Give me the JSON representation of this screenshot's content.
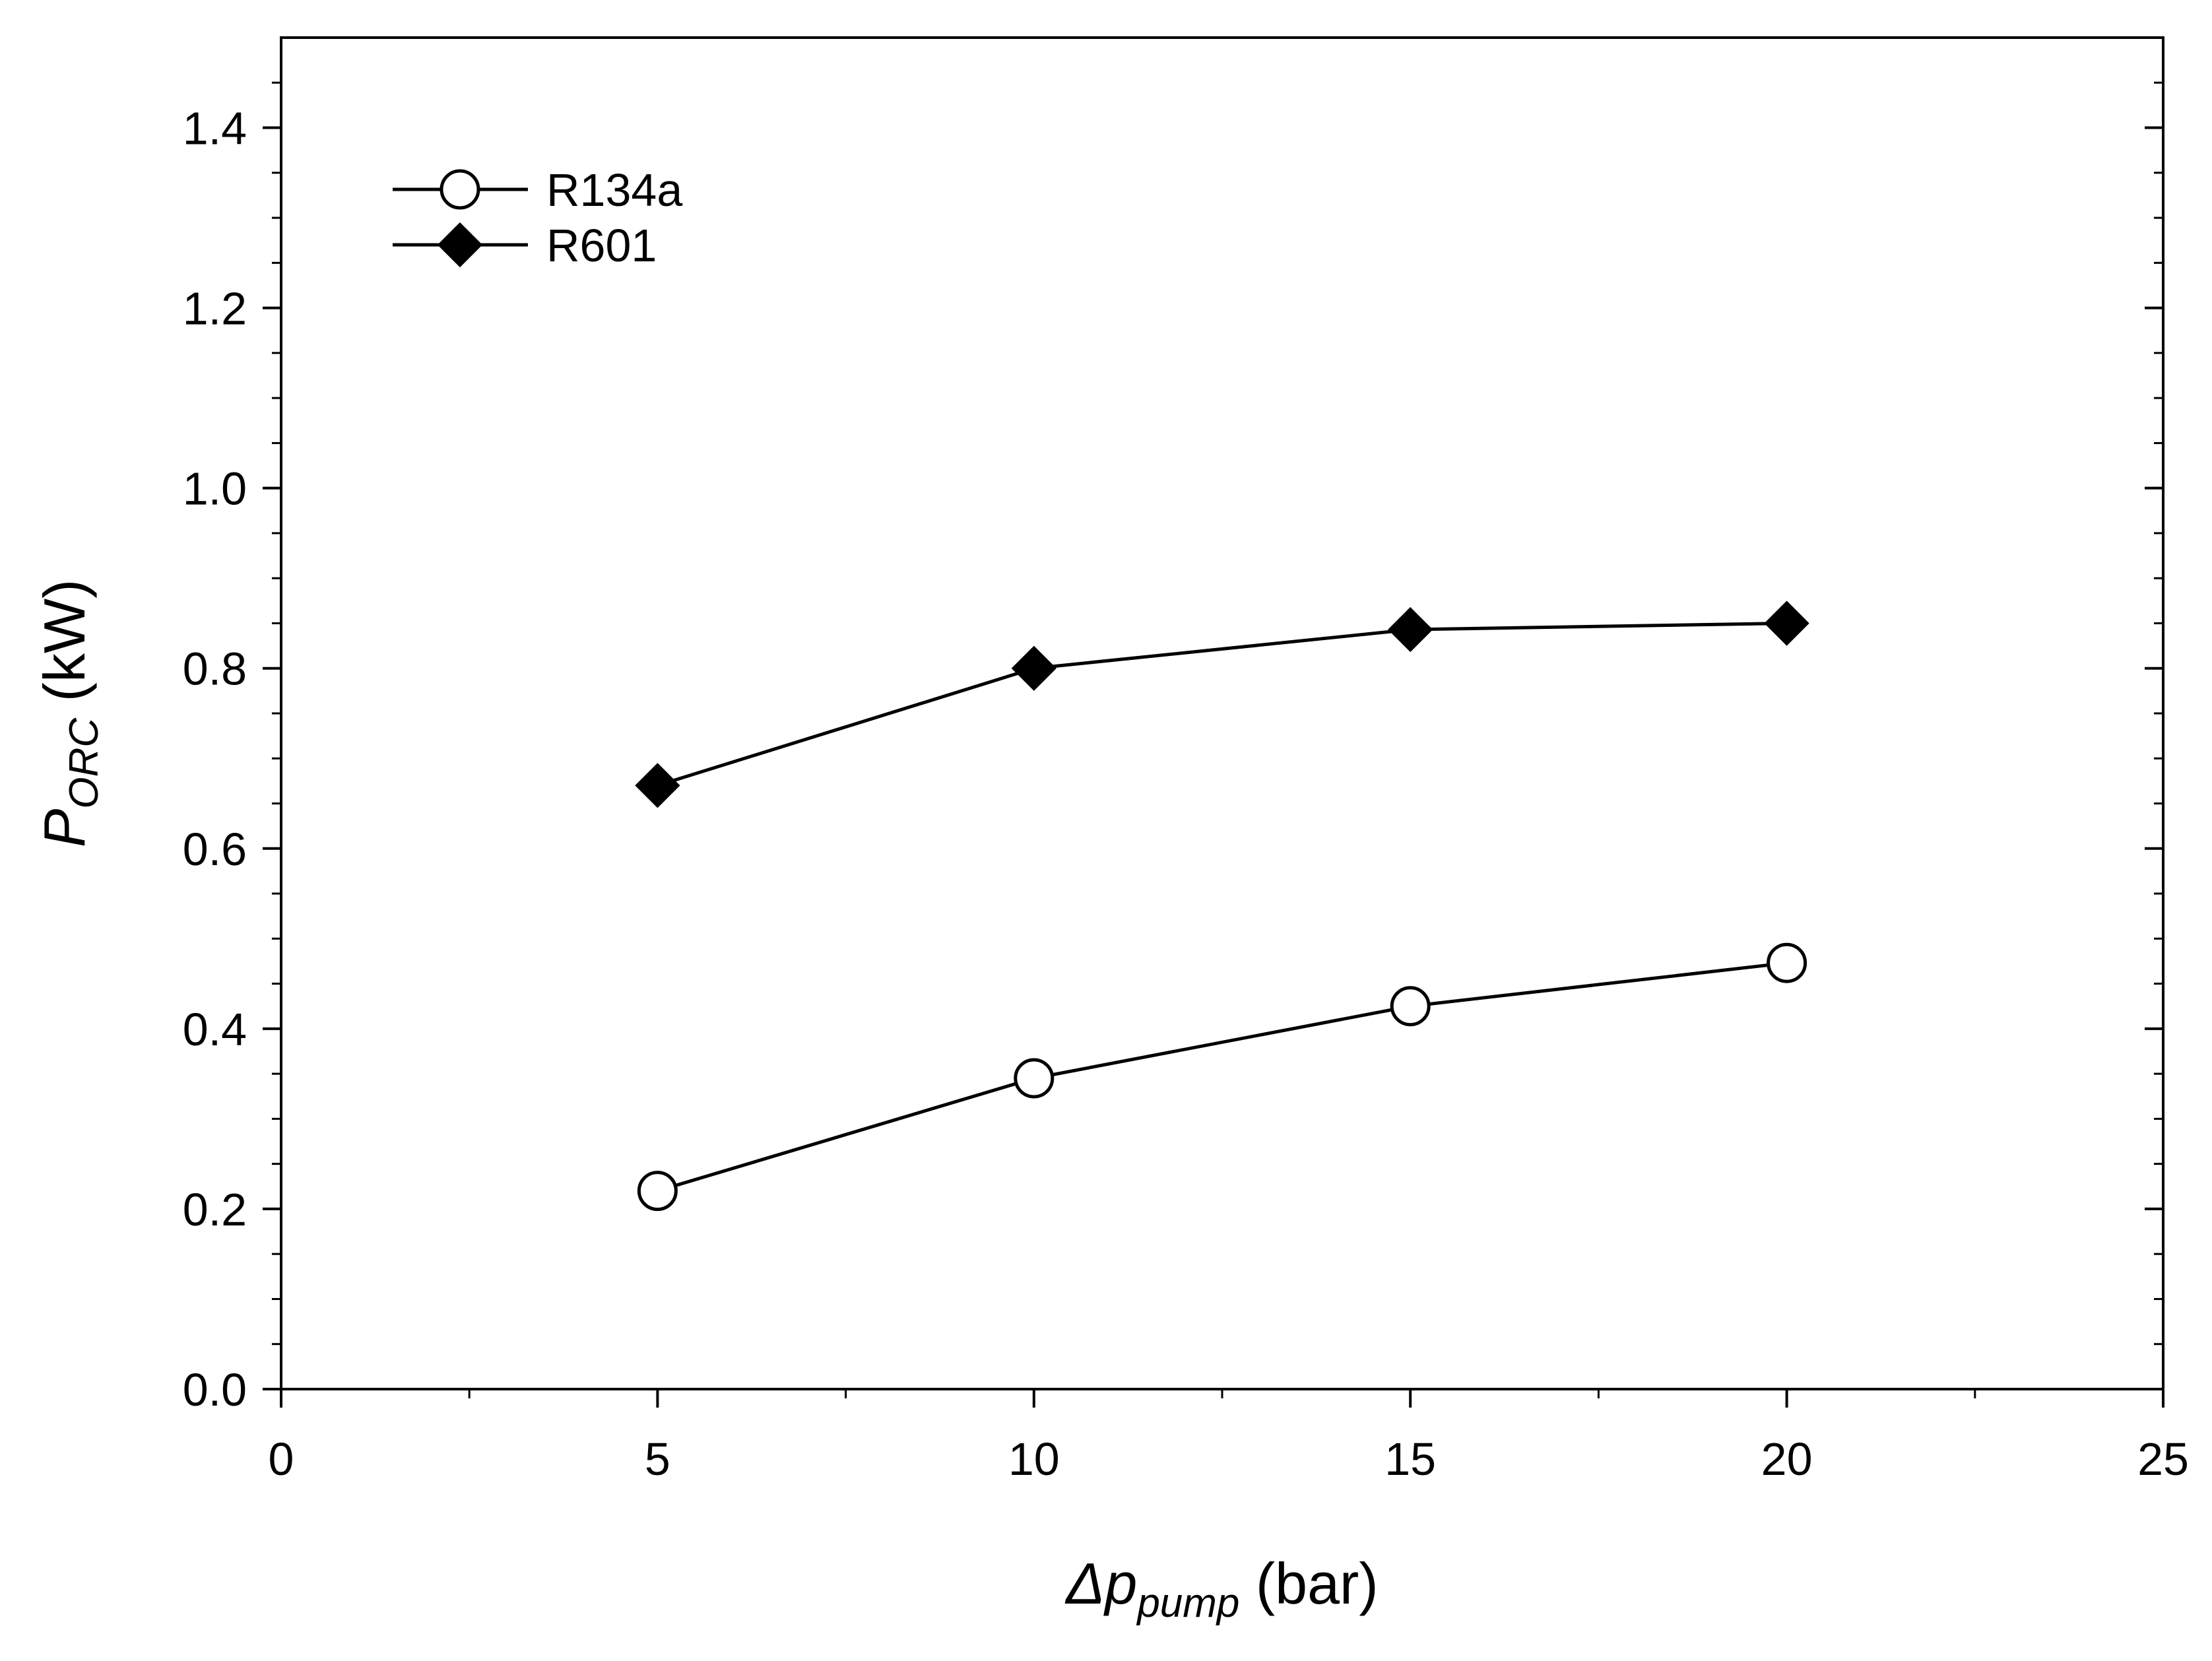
{
  "chart_data": {
    "type": "line",
    "xlabel": {
      "main": "Δp",
      "sub": "pump",
      "unit": " (bar)"
    },
    "ylabel": {
      "main": "P",
      "sub": "ORC",
      "unit": " (kW)"
    },
    "xlim": [
      0,
      25
    ],
    "ylim": [
      0,
      1.5
    ],
    "x_ticks": [
      0,
      5,
      10,
      15,
      20,
      25
    ],
    "x_tick_labels": [
      "0",
      "5",
      "10",
      "15",
      "20",
      "25"
    ],
    "y_ticks": [
      0.0,
      0.2,
      0.4,
      0.6,
      0.8,
      1.0,
      1.2,
      1.4
    ],
    "y_tick_labels": [
      "0.0",
      "0.2",
      "0.4",
      "0.6",
      "0.8",
      "1.0",
      "1.2",
      "1.4"
    ],
    "grid": false,
    "legend_position": "top-left",
    "series": [
      {
        "name": "R134a",
        "marker": "open-circle",
        "x": [
          5,
          10,
          15,
          20
        ],
        "y": [
          0.22,
          0.345,
          0.425,
          0.473
        ]
      },
      {
        "name": "R601",
        "marker": "filled-diamond",
        "x": [
          5,
          10,
          15,
          20
        ],
        "y": [
          0.67,
          0.8,
          0.843,
          0.85
        ]
      }
    ]
  }
}
